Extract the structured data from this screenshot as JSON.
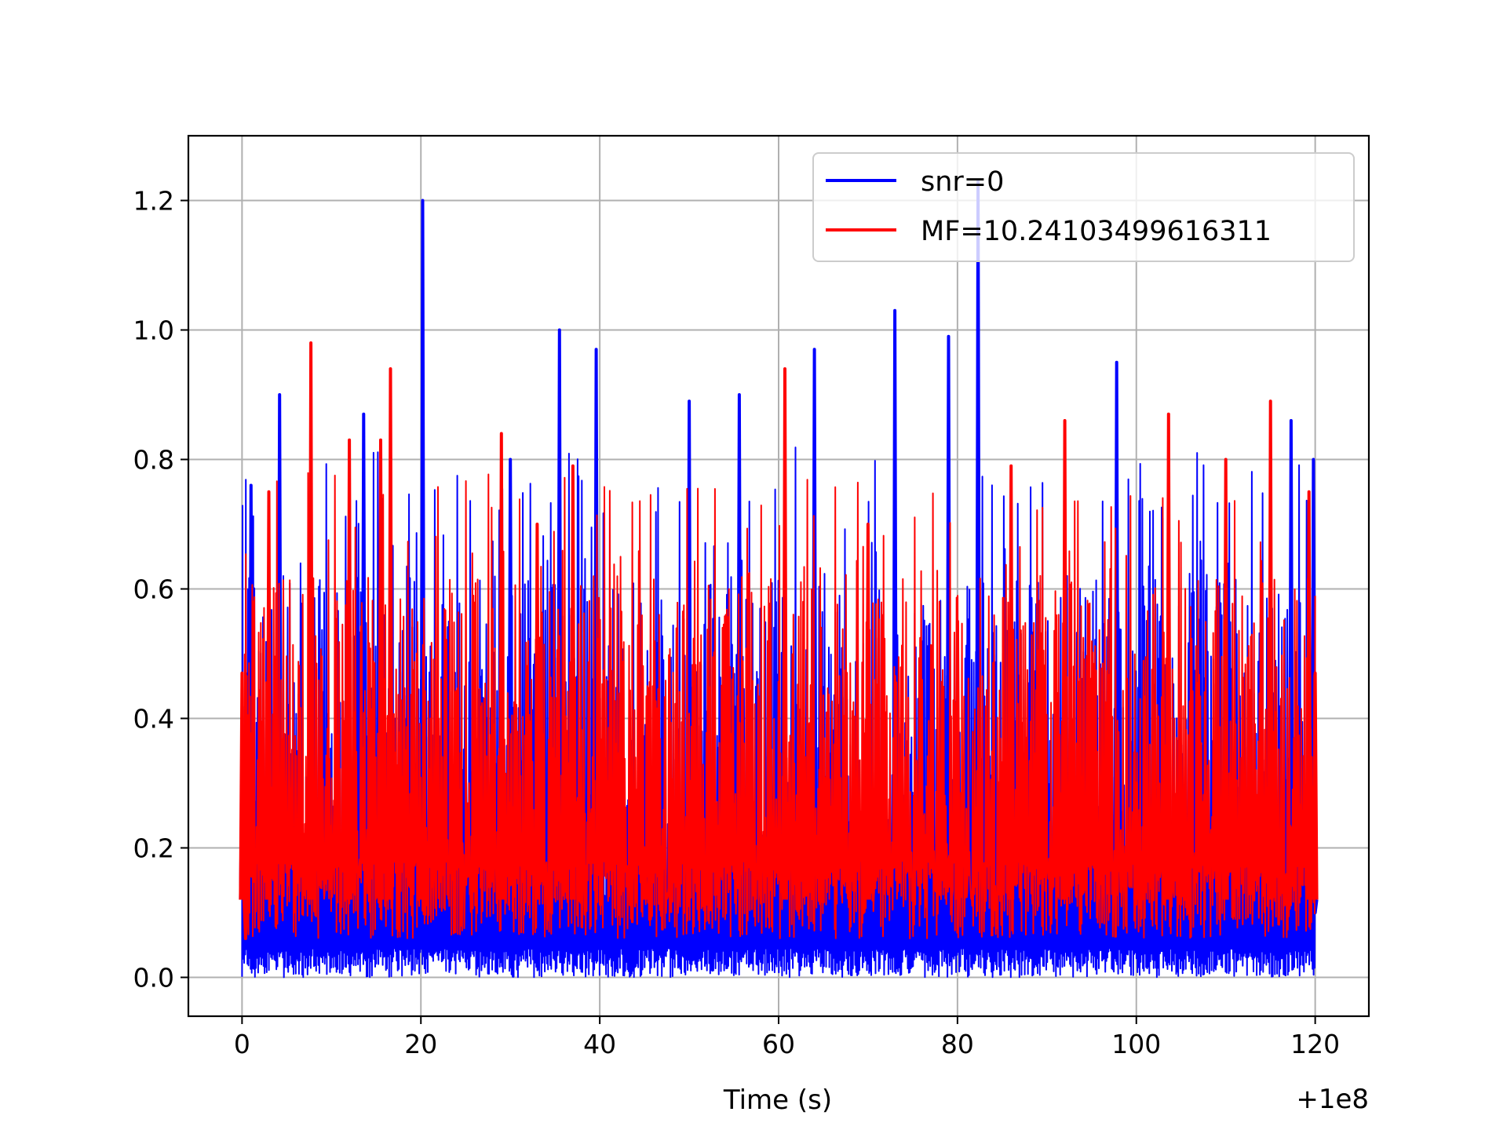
{
  "chart_data": {
    "type": "line",
    "title": "",
    "xlabel": "Time (s)",
    "ylabel": "",
    "x_offset_text": "+1e8",
    "xlim": [
      -6,
      126
    ],
    "ylim": [
      -0.06,
      1.3
    ],
    "xticks": [
      0,
      20,
      40,
      60,
      80,
      100,
      120
    ],
    "xtick_labels": [
      "0",
      "20",
      "40",
      "60",
      "80",
      "100",
      "120"
    ],
    "yticks": [
      0.0,
      0.2,
      0.4,
      0.6,
      0.8,
      1.0,
      1.2
    ],
    "ytick_labels": [
      "0.0",
      "0.2",
      "0.4",
      "0.6",
      "0.8",
      "1.0",
      "1.2"
    ],
    "grid": true,
    "legend_position": "top-right",
    "series": [
      {
        "name": "snr=0",
        "color": "#0000ff",
        "x": [
          0.0,
          0.5,
          1.0,
          2.0,
          4.2,
          8.0,
          13.6,
          20.2,
          25.0,
          30.0,
          35.5,
          39.6,
          50.0,
          55.6,
          60.0,
          64.0,
          70.0,
          73.0,
          79.0,
          82.3,
          90.0,
          97.8,
          105.0,
          110.0,
          117.3,
          119.8,
          120.0
        ],
        "values": [
          0.33,
          0.05,
          0.76,
          0.3,
          0.9,
          0.25,
          0.87,
          1.2,
          0.3,
          0.8,
          1.0,
          0.97,
          0.89,
          0.9,
          0.3,
          0.97,
          0.25,
          1.03,
          0.99,
          1.23,
          0.25,
          0.95,
          0.3,
          0.5,
          0.86,
          0.8,
          0.1
        ]
      },
      {
        "name": "MF=10.24103499616311",
        "color": "#ff0000",
        "x": [
          0.0,
          0.4,
          3.0,
          7.7,
          12.0,
          15.5,
          16.6,
          20.0,
          29.0,
          33.0,
          37.0,
          45.0,
          60.7,
          70.0,
          80.0,
          86.0,
          92.0,
          100.0,
          103.6,
          110.0,
          115.0,
          119.3,
          120.0
        ],
        "values": [
          0.47,
          0.06,
          0.75,
          0.98,
          0.83,
          0.83,
          0.94,
          0.2,
          0.84,
          0.7,
          0.79,
          0.2,
          0.94,
          0.7,
          0.55,
          0.79,
          0.86,
          0.3,
          0.87,
          0.8,
          0.89,
          0.75,
          0.47
        ]
      }
    ]
  }
}
